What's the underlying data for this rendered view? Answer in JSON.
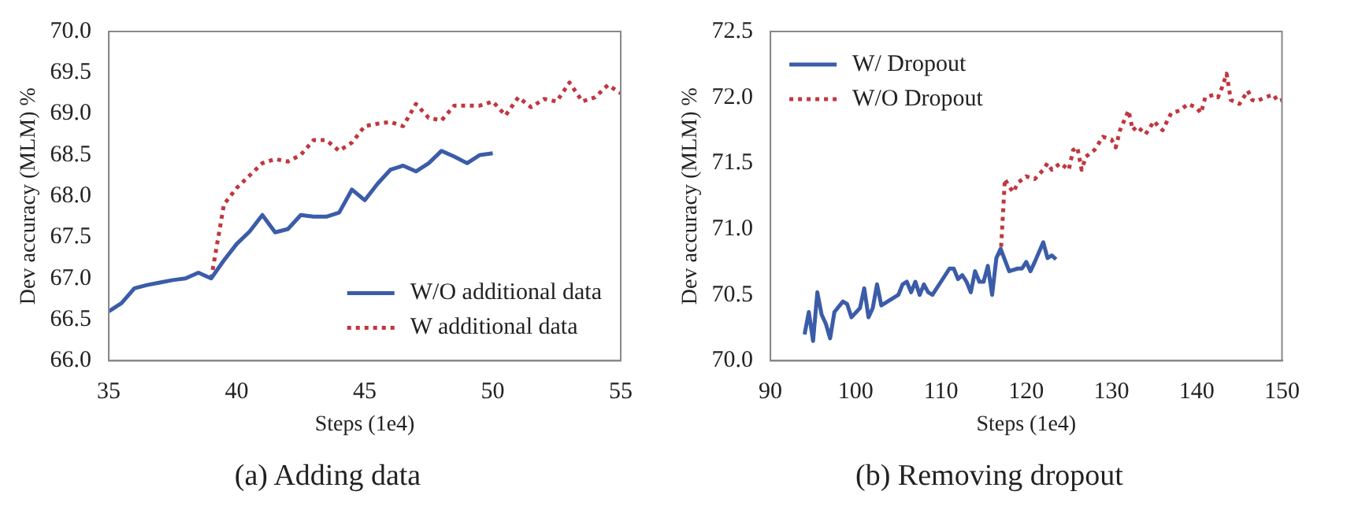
{
  "chart_data": [
    {
      "type": "line",
      "xlabel": "Steps (1e4)",
      "ylabel": "Dev accuracy (MLM) %",
      "annotations": [
        "(a) Adding data"
      ],
      "legend": "bottom right",
      "grid": false,
      "marker": "none",
      "xlim": [
        35,
        55
      ],
      "xticks": [
        35,
        40,
        45,
        50,
        55
      ],
      "ylim": [
        66,
        70
      ],
      "yticks": [
        {
          "value": 66,
          "label": "66.0"
        },
        {
          "value": 66.5,
          "label": "66.5"
        },
        {
          "value": 67,
          "label": "67.0"
        },
        {
          "value": 67.5,
          "label": "67.5"
        },
        {
          "value": 68,
          "label": "68.0"
        },
        {
          "value": 68.5,
          "label": "68.5"
        },
        {
          "value": 69,
          "label": "69.0"
        },
        {
          "value": 69.5,
          "label": "69.5"
        },
        {
          "value": 70,
          "label": "70.0"
        }
      ],
      "series": [
        {
          "name": "W/O additional data",
          "color": "#3b5ca8",
          "line_style": "solid",
          "x": [
            35,
            35.5,
            36,
            36.5,
            37,
            37.5,
            38,
            38.5,
            39,
            39.5,
            40,
            40.5,
            41,
            41.5,
            42,
            42.5,
            43,
            43.5,
            44,
            44.5,
            45,
            45.5,
            46,
            46.5,
            47,
            47.5,
            48,
            48.5,
            49,
            49.5,
            50
          ],
          "values": [
            66.6,
            66.7,
            66.88,
            66.92,
            66.95,
            66.98,
            67.0,
            67.07,
            67.0,
            67.22,
            67.42,
            67.57,
            67.77,
            67.56,
            67.6,
            67.77,
            67.75,
            67.75,
            67.8,
            68.08,
            67.95,
            68.15,
            68.32,
            68.37,
            68.3,
            68.4,
            68.55,
            68.48,
            68.4,
            68.5,
            68.52
          ]
        },
        {
          "name": "W additional data",
          "color": "#c0373f",
          "line_style": "dotted",
          "x": [
            39,
            39.5,
            40,
            40.5,
            41,
            41.5,
            42,
            42.5,
            43,
            43.5,
            44,
            44.5,
            45,
            45.5,
            46,
            46.5,
            47,
            47.5,
            48,
            48.5,
            49,
            49.5,
            50,
            50.5,
            51,
            51.5,
            52,
            52.5,
            53,
            53.5,
            54,
            54.5,
            55
          ],
          "values": [
            67.0,
            67.9,
            68.1,
            68.25,
            68.4,
            68.45,
            68.42,
            68.5,
            68.68,
            68.68,
            68.55,
            68.65,
            68.85,
            68.88,
            68.9,
            68.85,
            69.12,
            68.95,
            68.92,
            69.1,
            69.1,
            69.1,
            69.15,
            68.98,
            69.2,
            69.08,
            69.18,
            69.15,
            69.38,
            69.15,
            69.2,
            69.35,
            69.25
          ]
        }
      ]
    },
    {
      "type": "line",
      "xlabel": "Steps (1e4)",
      "ylabel": "Dev accuracy (MLM) %",
      "annotations": [
        "(b) Removing dropout"
      ],
      "legend": "top left",
      "grid": false,
      "marker": "none",
      "xlim": [
        90,
        150
      ],
      "xticks": [
        90,
        100,
        110,
        120,
        130,
        140,
        150
      ],
      "ylim": [
        70,
        72.5
      ],
      "yticks": [
        {
          "value": 70,
          "label": "70.0"
        },
        {
          "value": 70.5,
          "label": "70.5"
        },
        {
          "value": 71,
          "label": "71.0"
        },
        {
          "value": 71.5,
          "label": "71.5"
        },
        {
          "value": 72,
          "label": "72.0"
        },
        {
          "value": 72.5,
          "label": "72.5"
        }
      ],
      "series": [
        {
          "name": "W/ Dropout",
          "color": "#3b5ca8",
          "line_style": "solid",
          "x": [
            94,
            94.5,
            95,
            95.5,
            96,
            96.5,
            97,
            97.5,
            98.5,
            99,
            99.5,
            100.5,
            101,
            101.5,
            102,
            102.5,
            103,
            104,
            105,
            105.5,
            106,
            106.5,
            107,
            107.5,
            108,
            108.5,
            109,
            110,
            111,
            111.5,
            112,
            112.5,
            113,
            113.5,
            114,
            114.5,
            115,
            115.5,
            116,
            116.5,
            117,
            118,
            119,
            119.5,
            120,
            120.5,
            121,
            122,
            122.5,
            123,
            123.5
          ],
          "values": [
            70.2,
            70.37,
            70.15,
            70.52,
            70.35,
            70.28,
            70.17,
            70.37,
            70.45,
            70.43,
            70.33,
            70.4,
            70.55,
            70.33,
            70.4,
            70.58,
            70.42,
            70.46,
            70.5,
            70.58,
            70.6,
            70.52,
            70.6,
            70.5,
            70.58,
            70.52,
            70.5,
            70.6,
            70.7,
            70.7,
            70.62,
            70.65,
            70.6,
            70.52,
            70.68,
            70.6,
            70.6,
            70.72,
            70.5,
            70.78,
            70.85,
            70.68,
            70.7,
            70.7,
            70.75,
            70.68,
            70.75,
            70.9,
            70.78,
            70.8,
            70.77
          ]
        },
        {
          "name": "W/O Dropout",
          "color": "#c0373f",
          "line_style": "dotted",
          "x": [
            117,
            117.5,
            118,
            118.5,
            119,
            120,
            121,
            122,
            122.5,
            123,
            124,
            125,
            125.5,
            126,
            126.5,
            127,
            128,
            129,
            130,
            130.5,
            131,
            132,
            132.5,
            133,
            134,
            135,
            135.5,
            136,
            137,
            138,
            139,
            140,
            140.5,
            141,
            142,
            142.5,
            143,
            143.5,
            144,
            145,
            146,
            146.5,
            147,
            148,
            149,
            149.5,
            150
          ],
          "values": [
            70.8,
            71.38,
            71.32,
            71.28,
            71.35,
            71.4,
            71.38,
            71.45,
            71.5,
            71.45,
            71.5,
            71.45,
            71.6,
            71.62,
            71.45,
            71.55,
            71.6,
            71.7,
            71.68,
            71.62,
            71.75,
            71.9,
            71.75,
            71.78,
            71.72,
            71.82,
            71.78,
            71.75,
            71.88,
            71.9,
            71.95,
            71.92,
            71.88,
            72.0,
            72.02,
            72.0,
            72.08,
            72.18,
            71.98,
            71.95,
            72.05,
            71.98,
            71.97,
            72.0,
            72.02,
            71.97,
            71.98
          ]
        }
      ]
    }
  ]
}
